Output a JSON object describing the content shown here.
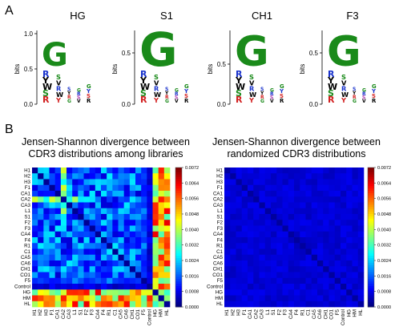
{
  "panels": {
    "a_label": "A",
    "b_label": "B"
  },
  "logos": [
    {
      "title": "HG",
      "ylabel": "bits",
      "ticks": [
        "1.0",
        "0.5",
        "0.0"
      ]
    },
    {
      "title": "S1",
      "ylabel": "bits",
      "ticks": [
        "0.5",
        "0.0"
      ]
    },
    {
      "title": "CH1",
      "ylabel": "bits",
      "ticks": [
        "0.5",
        "0.0"
      ]
    },
    {
      "title": "F3",
      "ylabel": "bits",
      "ticks": [
        "0.5",
        "0.0"
      ]
    }
  ],
  "logo_letters": {
    "G": "G",
    "V": "V",
    "R": "R",
    "S": "S",
    "Y": "Y",
    "W": "W"
  },
  "colors": {
    "green": "#1a8a1a",
    "blue": "#1a33cc",
    "black": "#000000",
    "red": "#d22020",
    "magenta": "#b03fb0"
  },
  "heatmaps": {
    "left_title_line1": "Jensen-Shannon divergence between",
    "left_title_line2": "CDR3 distributions among libraries",
    "right_title_line1": "Jensen-Shannon divergence between",
    "right_title_line2": "randomized CDR3 distributions",
    "row_labels": [
      "H1",
      "H2",
      "H3",
      "F1",
      "CA1",
      "CA2",
      "CA3",
      "L1",
      "S1",
      "F2",
      "F3",
      "CA4",
      "F4",
      "R1",
      "C1",
      "CA5",
      "CA6",
      "CH1",
      "CO1",
      "F5",
      "Control",
      "HG",
      "HM",
      "HL"
    ],
    "col_labels": [
      "H1",
      "H2",
      "H3",
      "F1",
      "CA1",
      "CA2",
      "CA3",
      "L1",
      "S1",
      "F2",
      "F3",
      "CA4",
      "F4",
      "R1",
      "C1",
      "CA5",
      "CA6",
      "CH1",
      "CO1",
      "F5",
      "Control",
      "HG",
      "HM",
      "HL"
    ],
    "colorbar_ticks": [
      "0.0072",
      "0.0064",
      "0.0056",
      "0.0048",
      "0.0040",
      "0.0032",
      "0.0024",
      "0.0016",
      "0.0008",
      "0.0000"
    ]
  },
  "chart_data": [
    {
      "type": "heatmap",
      "title": "Jensen-Shannon divergence between CDR3 distributions among libraries",
      "rows": [
        "H1",
        "H2",
        "H3",
        "F1",
        "CA1",
        "CA2",
        "CA3",
        "L1",
        "S1",
        "F2",
        "F3",
        "CA4",
        "F4",
        "R1",
        "C1",
        "CA5",
        "CA6",
        "CH1",
        "CO1",
        "F5",
        "Control",
        "HG",
        "HM",
        "HL"
      ],
      "cols": [
        "H1",
        "H2",
        "H3",
        "F1",
        "CA1",
        "CA2",
        "CA3",
        "L1",
        "S1",
        "F2",
        "F3",
        "CA4",
        "F4",
        "R1",
        "C1",
        "CA5",
        "CA6",
        "CH1",
        "CO1",
        "F5",
        "Control",
        "HG",
        "HM",
        "HL"
      ],
      "colorbar_range": [
        0.0,
        0.0072
      ]
    },
    {
      "type": "heatmap",
      "title": "Jensen-Shannon divergence between randomized CDR3 distributions",
      "rows": [
        "H1",
        "H2",
        "H3",
        "F1",
        "CA1",
        "CA2",
        "CA3",
        "L1",
        "S1",
        "F2",
        "F3",
        "CA4",
        "F4",
        "R1",
        "C1",
        "CA5",
        "CA6",
        "CH1",
        "CO1",
        "F5",
        "Control",
        "HG",
        "HM",
        "HL"
      ],
      "cols": [
        "H1",
        "H2",
        "H3",
        "F1",
        "CA1",
        "CA2",
        "CA3",
        "L1",
        "S1",
        "F2",
        "F3",
        "CA4",
        "F4",
        "R1",
        "C1",
        "CA5",
        "CA6",
        "CH1",
        "CO1",
        "F5",
        "Control",
        "HG",
        "HM",
        "HL"
      ],
      "colorbar_range": [
        0.0,
        0.0072
      ]
    }
  ]
}
